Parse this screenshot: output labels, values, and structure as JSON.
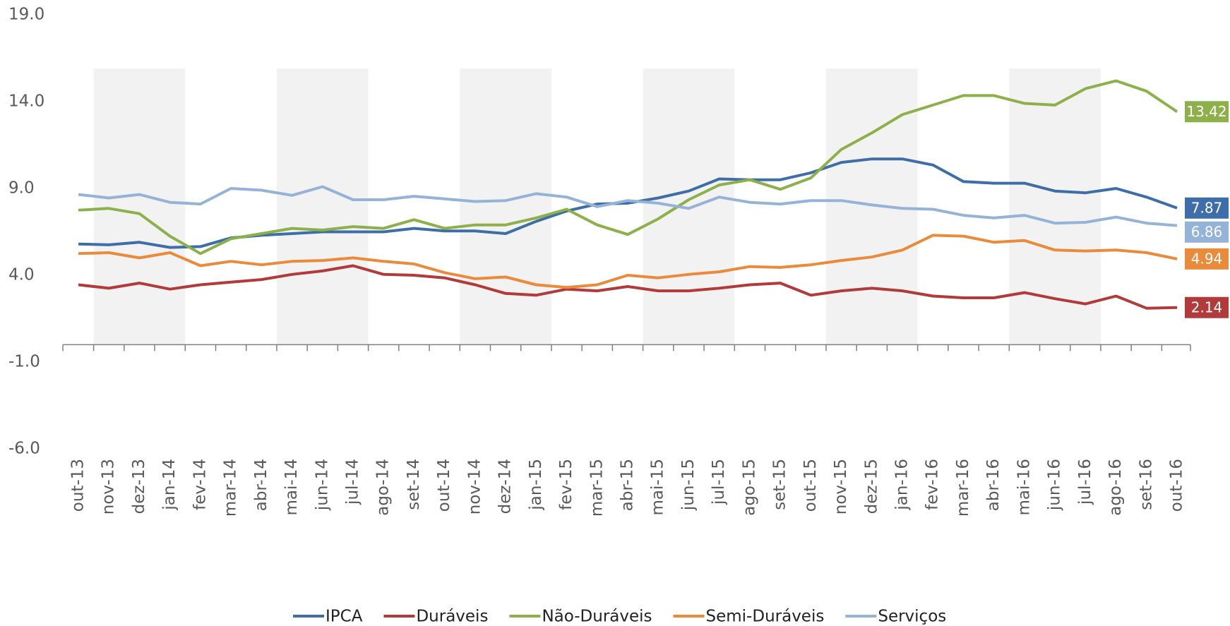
{
  "chart_data": {
    "type": "line",
    "categories": [
      "out-13",
      "nov-13",
      "dez-13",
      "jan-14",
      "fev-14",
      "mar-14",
      "abr-14",
      "mai-14",
      "jun-14",
      "jul-14",
      "ago-14",
      "set-14",
      "out-14",
      "nov-14",
      "dez-14",
      "jan-15",
      "fev-15",
      "mar-15",
      "abr-15",
      "mai-15",
      "jun-15",
      "jul-15",
      "ago-15",
      "set-15",
      "out-15",
      "nov-15",
      "dez-15",
      "jan-16",
      "fev-16",
      "mar-16",
      "abr-16",
      "mai-16",
      "jun-16",
      "jul-16",
      "ago-16",
      "set-16",
      "out-16"
    ],
    "series": [
      {
        "name": "IPCA",
        "color": "#3e6ea8",
        "values": [
          5.8,
          5.75,
          5.9,
          5.6,
          5.65,
          6.15,
          6.3,
          6.4,
          6.5,
          6.5,
          6.5,
          6.7,
          6.55,
          6.55,
          6.4,
          7.1,
          7.7,
          8.1,
          8.15,
          8.45,
          8.85,
          9.55,
          9.5,
          9.5,
          9.9,
          10.5,
          10.7,
          10.7,
          10.35,
          9.4,
          9.3,
          9.3,
          8.85,
          8.75,
          9.0,
          8.5,
          7.87
        ]
      },
      {
        "name": "Duráveis",
        "color": "#b33a3a",
        "values": [
          3.45,
          3.25,
          3.55,
          3.2,
          3.45,
          3.6,
          3.75,
          4.05,
          4.25,
          4.55,
          4.05,
          4.0,
          3.85,
          3.45,
          2.95,
          2.85,
          3.2,
          3.1,
          3.35,
          3.1,
          3.1,
          3.25,
          3.45,
          3.55,
          2.85,
          3.1,
          3.25,
          3.1,
          2.8,
          2.7,
          2.7,
          3.0,
          2.65,
          2.35,
          2.8,
          2.1,
          2.14
        ]
      },
      {
        "name": "Não-Duráveis",
        "color": "#8db04a",
        "values": [
          7.75,
          7.85,
          7.55,
          6.25,
          5.25,
          6.1,
          6.4,
          6.7,
          6.6,
          6.8,
          6.7,
          7.2,
          6.7,
          6.9,
          6.9,
          7.3,
          7.8,
          6.9,
          6.35,
          7.25,
          8.35,
          9.2,
          9.5,
          8.95,
          9.6,
          11.25,
          12.2,
          13.25,
          13.8,
          14.35,
          14.35,
          13.9,
          13.8,
          14.75,
          15.2,
          14.6,
          13.42
        ]
      },
      {
        "name": "Semi-Duráveis",
        "color": "#e98b3a",
        "values": [
          5.25,
          5.3,
          5.0,
          5.3,
          4.55,
          4.8,
          4.6,
          4.8,
          4.85,
          5.0,
          4.8,
          4.65,
          4.15,
          3.8,
          3.9,
          3.45,
          3.3,
          3.45,
          4.0,
          3.85,
          4.05,
          4.2,
          4.5,
          4.45,
          4.6,
          4.85,
          5.05,
          5.45,
          6.3,
          6.25,
          5.9,
          6.0,
          5.45,
          5.4,
          5.45,
          5.3,
          4.94
        ]
      },
      {
        "name": "Serviços",
        "color": "#95b3d7",
        "values": [
          8.65,
          8.45,
          8.65,
          8.2,
          8.1,
          9.0,
          8.9,
          8.6,
          9.1,
          8.35,
          8.35,
          8.55,
          8.4,
          8.25,
          8.3,
          8.7,
          8.5,
          7.95,
          8.3,
          8.15,
          7.85,
          8.5,
          8.2,
          8.1,
          8.3,
          8.3,
          8.05,
          7.85,
          7.8,
          7.45,
          7.3,
          7.45,
          7.0,
          7.05,
          7.35,
          7.0,
          6.86
        ]
      }
    ],
    "ylim": [
      -6,
      19
    ],
    "yticks": [
      {
        "value": 19,
        "label": "19.0"
      },
      {
        "value": 14,
        "label": "14.0"
      },
      {
        "value": 9,
        "label": "9.0"
      },
      {
        "value": 4,
        "label": "4.0"
      },
      {
        "value": -1,
        "label": "-1.0"
      },
      {
        "value": -6,
        "label": "-6.0"
      }
    ],
    "legend": "bottom"
  }
}
